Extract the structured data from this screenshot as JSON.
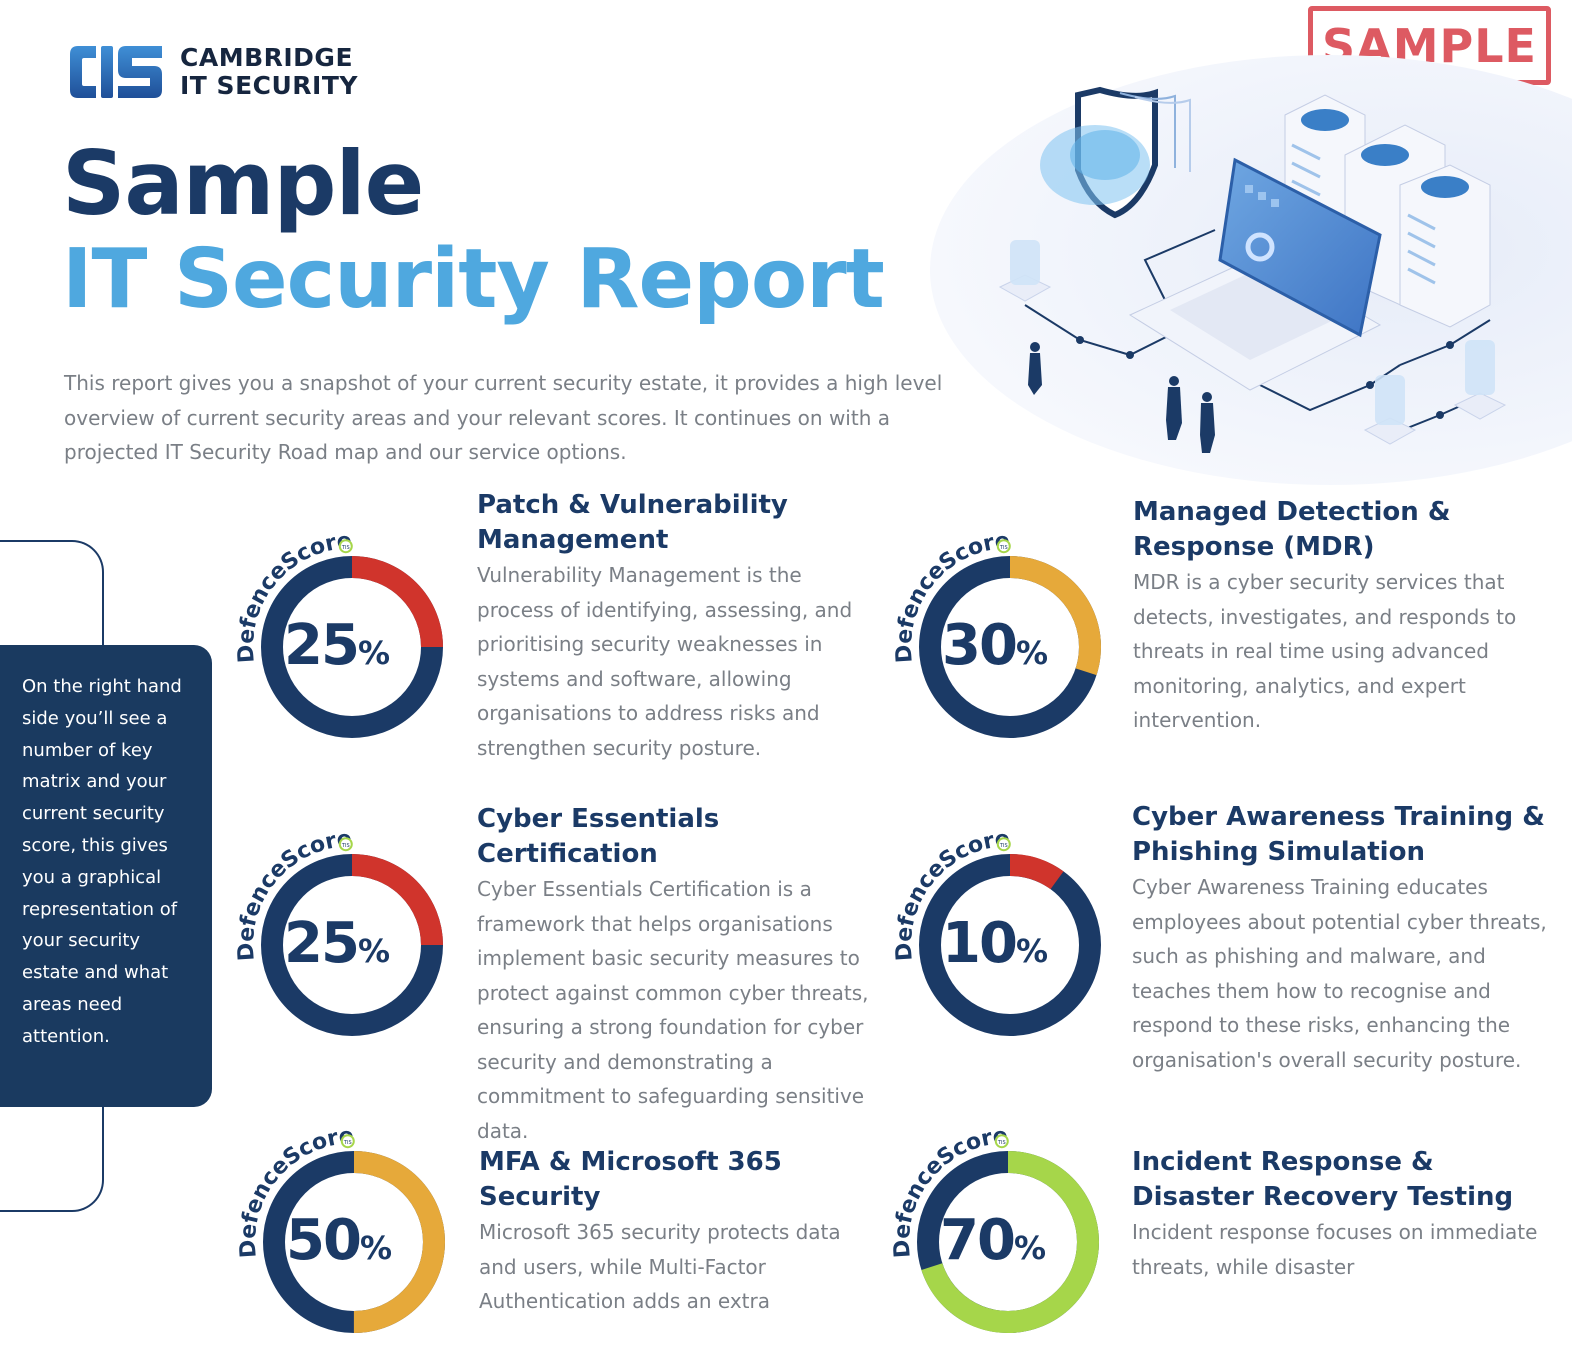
{
  "brand": {
    "name_line1": "CAMBRIDGE",
    "name_line2": "IT SECURITY",
    "logo_mark_text": "CIS",
    "colors": {
      "navy": "#1b3a66",
      "accent_blue": "#4fa8df",
      "grey_text": "#7a7f86"
    }
  },
  "stamp": {
    "label": "SAMPLE",
    "color": "#dd5a62"
  },
  "title": {
    "line1": "Sample",
    "line2": "IT Security Report"
  },
  "intro": "This report gives you a snapshot of your current security estate, it provides a high level overview of current security areas and your relevant scores. It continues on with a projected IT Security Road map and our service options.",
  "hero_illustration": "isometric-security-illustration",
  "side_note": "On the right hand side you’ll see a number of key matrix and your current security score, this gives you a graphical representation of your security estate and what areas need attention.",
  "gauge_label": "DefenceScore",
  "gauge_badge": "TIS",
  "sections": [
    {
      "title": "Patch & Vulnerability Management",
      "score": 25,
      "score_color": "#d0342c",
      "text": "Vulnerability Management is the process of identifying, assessing, and prioritising security weaknesses in systems and software, allowing organisations to address risks and strengthen security posture."
    },
    {
      "title": "Managed Detection & Response (MDR)",
      "score": 30,
      "score_color": "#e6a93a",
      "text": "MDR is a cyber security services that detects, investigates, and responds to threats in real time using advanced monitoring, analytics, and expert intervention."
    },
    {
      "title": "Cyber Essentials Certification",
      "score": 25,
      "score_color": "#d0342c",
      "text": "Cyber Essentials Certification is a framework that helps organisations implement basic security measures to protect against common cyber threats, ensuring a strong foundation for cyber security and demonstrating a commitment to safeguarding sensitive data."
    },
    {
      "title": "Cyber Awareness Training & Phishing Simulation",
      "score": 10,
      "score_color": "#d0342c",
      "text": "Cyber Awareness Training educates employees about potential cyber threats, such as phishing and malware, and teaches them how to recognise and respond to these risks, enhancing the organisation's overall security posture."
    },
    {
      "title": "MFA & Microsoft 365 Security",
      "score": 50,
      "score_color": "#e6a93a",
      "text": "Microsoft 365 security protects data and users, while Multi-Factor Authentication adds an extra"
    },
    {
      "title": "Incident Response & Disaster Recovery Testing",
      "score": 70,
      "score_color": "#a6d64a",
      "text": "Incident response focuses on immediate threats, while disaster"
    }
  ]
}
